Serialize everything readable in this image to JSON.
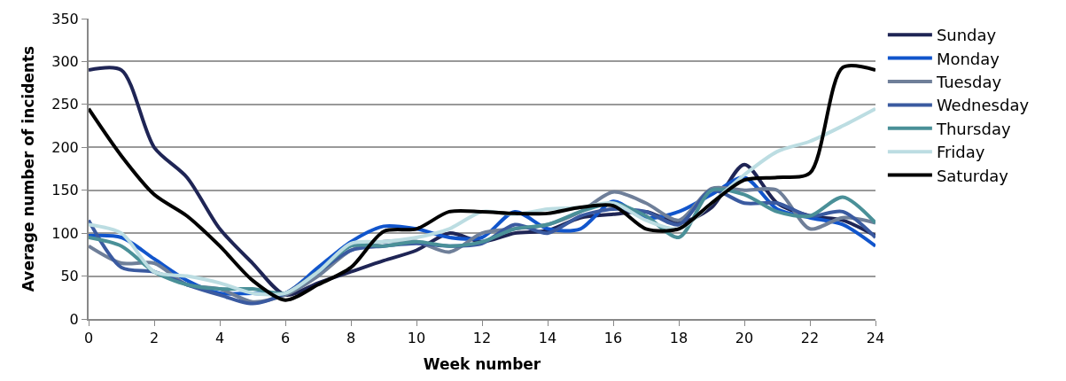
{
  "chart_data": {
    "type": "line",
    "xlabel": "Week number",
    "ylabel": "Average number of incidents",
    "x": [
      0,
      1,
      2,
      3,
      4,
      5,
      6,
      7,
      8,
      9,
      10,
      11,
      12,
      13,
      14,
      15,
      16,
      17,
      18,
      19,
      20,
      21,
      22,
      23,
      24
    ],
    "xlim": [
      0,
      24
    ],
    "xticks": [
      0,
      2,
      4,
      6,
      8,
      10,
      12,
      14,
      16,
      18,
      20,
      22,
      24
    ],
    "ylim": [
      0,
      350
    ],
    "yticks": [
      0,
      50,
      100,
      150,
      200,
      250,
      300,
      350
    ],
    "grid": "y",
    "legend": "right",
    "marker": "none",
    "line_style": "solid",
    "series": [
      {
        "name": "Sunday",
        "color": "#1f2555",
        "values": [
          290,
          290,
          200,
          165,
          105,
          65,
          28,
          42,
          55,
          68,
          80,
          100,
          90,
          100,
          103,
          118,
          122,
          125,
          112,
          130,
          180,
          135,
          120,
          115,
          97
        ]
      },
      {
        "name": "Monday",
        "color": "#1155cc",
        "values": [
          97,
          95,
          70,
          45,
          30,
          30,
          30,
          60,
          90,
          108,
          105,
          95,
          95,
          125,
          105,
          105,
          137,
          118,
          125,
          145,
          165,
          128,
          118,
          110,
          85
        ]
      },
      {
        "name": "Tuesday",
        "color": "#6f7f99",
        "values": [
          85,
          65,
          65,
          40,
          35,
          20,
          28,
          50,
          80,
          90,
          90,
          78,
          100,
          105,
          110,
          125,
          148,
          135,
          115,
          152,
          150,
          150,
          105,
          118,
          112
        ]
      },
      {
        "name": "Wednesday",
        "color": "#3a5aa0",
        "values": [
          115,
          60,
          55,
          40,
          28,
          18,
          30,
          55,
          80,
          85,
          88,
          85,
          88,
          110,
          100,
          120,
          128,
          125,
          110,
          150,
          135,
          135,
          120,
          125,
          95
        ]
      },
      {
        "name": "Thursday",
        "color": "#4a9098",
        "values": [
          95,
          85,
          55,
          40,
          35,
          35,
          30,
          55,
          85,
          85,
          90,
          85,
          90,
          105,
          110,
          125,
          135,
          120,
          95,
          150,
          145,
          125,
          120,
          142,
          112
        ]
      },
      {
        "name": "Friday",
        "color": "#bcdde2",
        "values": [
          110,
          100,
          55,
          50,
          42,
          30,
          30,
          55,
          88,
          90,
          95,
          105,
          125,
          122,
          128,
          130,
          135,
          115,
          105,
          135,
          168,
          195,
          207,
          225,
          245
        ]
      },
      {
        "name": "Saturday",
        "color": "#000000",
        "values": [
          245,
          190,
          145,
          120,
          85,
          45,
          22,
          40,
          60,
          102,
          105,
          125,
          125,
          123,
          123,
          130,
          132,
          105,
          105,
          135,
          162,
          165,
          170,
          293,
          290
        ]
      }
    ]
  }
}
